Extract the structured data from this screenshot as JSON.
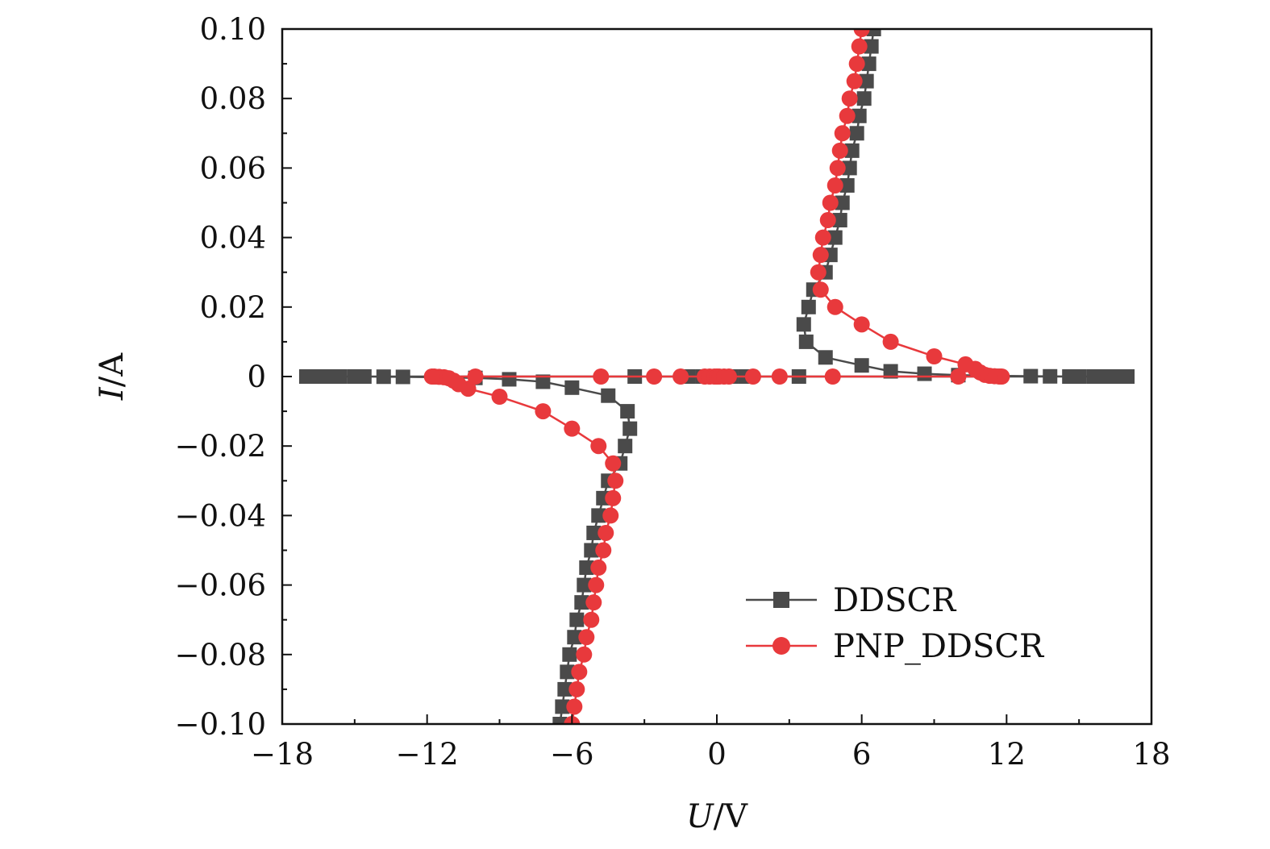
{
  "chart_data": {
    "type": "line",
    "xlabel": "U/V",
    "ylabel": "I/A",
    "xlabel_parts": {
      "var": "U",
      "unit": "/V"
    },
    "ylabel_parts": {
      "var": "I",
      "unit": "/A"
    },
    "xlim": [
      -18,
      18
    ],
    "ylim": [
      -0.1,
      0.1
    ],
    "xticks": [
      -18,
      -12,
      -6,
      0,
      6,
      12,
      18
    ],
    "xtick_labels": [
      "−18",
      "−12",
      "−6",
      "0",
      "6",
      "12",
      "18"
    ],
    "yticks": [
      0.1,
      0.08,
      0.06,
      0.04,
      0.02,
      0,
      -0.02,
      -0.04,
      -0.06,
      -0.08,
      -0.1
    ],
    "ytick_labels": [
      "0.10",
      "0.08",
      "0.06",
      "0.04",
      "0.02",
      "0",
      "−0.02",
      "−0.04",
      "−0.06",
      "−0.08",
      "−0.10"
    ],
    "grid": false,
    "legend_position": "bottom-right",
    "series": [
      {
        "name": "DDSCR",
        "color": "#4a4a4a",
        "marker": "square",
        "points": [
          [
            -6.5,
            -0.1
          ],
          [
            -6.4,
            -0.095
          ],
          [
            -6.3,
            -0.09
          ],
          [
            -6.2,
            -0.085
          ],
          [
            -6.1,
            -0.08
          ],
          [
            -5.9,
            -0.075
          ],
          [
            -5.8,
            -0.07
          ],
          [
            -5.6,
            -0.065
          ],
          [
            -5.5,
            -0.06
          ],
          [
            -5.4,
            -0.055
          ],
          [
            -5.2,
            -0.05
          ],
          [
            -5.1,
            -0.045
          ],
          [
            -4.9,
            -0.04
          ],
          [
            -4.7,
            -0.035
          ],
          [
            -4.5,
            -0.03
          ],
          [
            -4.0,
            -0.025
          ],
          [
            -3.8,
            -0.02
          ],
          [
            -3.6,
            -0.015
          ],
          [
            -3.7,
            -0.01
          ],
          [
            -4.5,
            -0.0055
          ],
          [
            -6.0,
            -0.0032
          ],
          [
            -7.2,
            -0.0015
          ],
          [
            -8.6,
            -0.0008
          ],
          [
            -10.0,
            -0.0004
          ],
          [
            -11.5,
            -0.0002
          ],
          [
            -13.0,
            -0.0001
          ],
          [
            -13.8,
            -5e-05
          ],
          [
            -14.6,
            0
          ],
          [
            -15.0,
            0
          ],
          [
            -15.6,
            0
          ],
          [
            -15.9,
            0
          ],
          [
            -16.3,
            0
          ],
          [
            -16.6,
            0
          ],
          [
            -17.0,
            0
          ],
          [
            -3.4,
            0
          ],
          [
            -1.2,
            0
          ],
          [
            -0.6,
            0
          ],
          [
            0,
            0
          ],
          [
            0.6,
            0
          ],
          [
            1.2,
            0
          ],
          [
            3.4,
            0
          ],
          [
            17.0,
            0
          ],
          [
            16.6,
            0
          ],
          [
            16.3,
            0
          ],
          [
            15.9,
            0
          ],
          [
            15.6,
            0
          ],
          [
            15.0,
            0
          ],
          [
            14.6,
            0
          ],
          [
            13.8,
            5e-05
          ],
          [
            13.0,
            0.0001
          ],
          [
            11.5,
            0.0002
          ],
          [
            10.0,
            0.0004
          ],
          [
            8.6,
            0.0008
          ],
          [
            7.2,
            0.0015
          ],
          [
            6.0,
            0.0032
          ],
          [
            4.5,
            0.0055
          ],
          [
            3.7,
            0.01
          ],
          [
            3.6,
            0.015
          ],
          [
            3.8,
            0.02
          ],
          [
            4.0,
            0.025
          ],
          [
            4.5,
            0.03
          ],
          [
            4.7,
            0.035
          ],
          [
            4.9,
            0.04
          ],
          [
            5.1,
            0.045
          ],
          [
            5.2,
            0.05
          ],
          [
            5.4,
            0.055
          ],
          [
            5.5,
            0.06
          ],
          [
            5.6,
            0.065
          ],
          [
            5.8,
            0.07
          ],
          [
            5.9,
            0.075
          ],
          [
            6.1,
            0.08
          ],
          [
            6.2,
            0.085
          ],
          [
            6.3,
            0.09
          ],
          [
            6.4,
            0.095
          ],
          [
            6.5,
            0.1
          ]
        ]
      },
      {
        "name": "PNP_DDSCR",
        "color": "#e8393c",
        "marker": "circle",
        "points": [
          [
            -6.0,
            -0.1
          ],
          [
            -5.9,
            -0.095
          ],
          [
            -5.8,
            -0.09
          ],
          [
            -5.7,
            -0.085
          ],
          [
            -5.5,
            -0.08
          ],
          [
            -5.4,
            -0.075
          ],
          [
            -5.2,
            -0.07
          ],
          [
            -5.1,
            -0.065
          ],
          [
            -5.0,
            -0.06
          ],
          [
            -4.9,
            -0.055
          ],
          [
            -4.7,
            -0.05
          ],
          [
            -4.6,
            -0.045
          ],
          [
            -4.4,
            -0.04
          ],
          [
            -4.3,
            -0.035
          ],
          [
            -4.2,
            -0.03
          ],
          [
            -4.3,
            -0.025
          ],
          [
            -4.9,
            -0.02
          ],
          [
            -6.0,
            -0.015
          ],
          [
            -7.2,
            -0.01
          ],
          [
            -9.0,
            -0.0058
          ],
          [
            -10.3,
            -0.0035
          ],
          [
            -10.7,
            -0.0022
          ],
          [
            -10.9,
            -0.0012
          ],
          [
            -11.1,
            -0.0005
          ],
          [
            -11.3,
            -0.0002
          ],
          [
            -11.5,
            -0.0001
          ],
          [
            -11.7,
            0
          ],
          [
            -11.8,
            0
          ],
          [
            -10.0,
            0
          ],
          [
            -4.8,
            0
          ],
          [
            -2.6,
            0
          ],
          [
            -1.5,
            0
          ],
          [
            -0.5,
            0
          ],
          [
            -0.3,
            0
          ],
          [
            -0.1,
            0
          ],
          [
            0,
            0
          ],
          [
            0.1,
            0
          ],
          [
            0.3,
            0
          ],
          [
            0.5,
            0
          ],
          [
            1.5,
            0
          ],
          [
            2.6,
            0
          ],
          [
            4.8,
            0
          ],
          [
            10.0,
            0
          ],
          [
            11.8,
            0
          ],
          [
            11.7,
            0
          ],
          [
            11.5,
            0.0001
          ],
          [
            11.3,
            0.0002
          ],
          [
            11.1,
            0.0005
          ],
          [
            10.9,
            0.0012
          ],
          [
            10.7,
            0.0022
          ],
          [
            10.3,
            0.0035
          ],
          [
            9.0,
            0.0058
          ],
          [
            7.2,
            0.01
          ],
          [
            6.0,
            0.015
          ],
          [
            4.9,
            0.02
          ],
          [
            4.3,
            0.025
          ],
          [
            4.2,
            0.03
          ],
          [
            4.3,
            0.035
          ],
          [
            4.4,
            0.04
          ],
          [
            4.6,
            0.045
          ],
          [
            4.7,
            0.05
          ],
          [
            4.9,
            0.055
          ],
          [
            5.0,
            0.06
          ],
          [
            5.1,
            0.065
          ],
          [
            5.2,
            0.07
          ],
          [
            5.4,
            0.075
          ],
          [
            5.5,
            0.08
          ],
          [
            5.7,
            0.085
          ],
          [
            5.8,
            0.09
          ],
          [
            5.9,
            0.095
          ],
          [
            6.0,
            0.1
          ]
        ]
      }
    ]
  }
}
